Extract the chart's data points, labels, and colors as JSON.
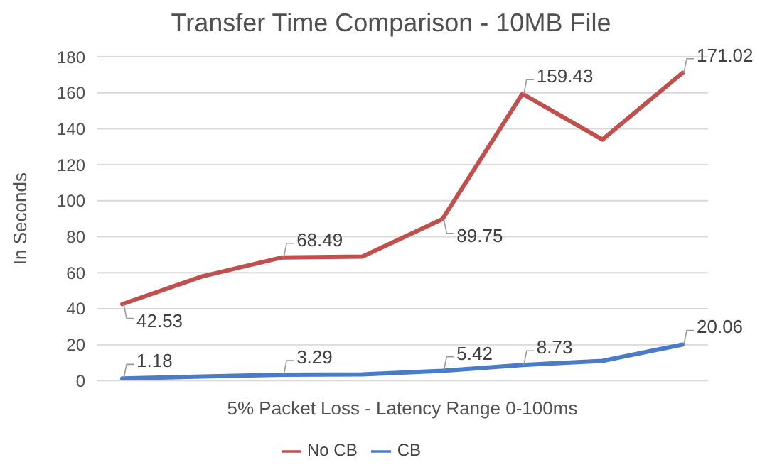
{
  "chart_data": {
    "type": "line",
    "title": "Transfer Time Comparison - 10MB File",
    "xlabel": "5% Packet Loss - Latency Range 0-100ms",
    "ylabel": "In Seconds",
    "categories": [
      null,
      null,
      null,
      null,
      null,
      null,
      null,
      null
    ],
    "series": [
      {
        "name": "No CB",
        "color": "#c0504d",
        "values": [
          42.53,
          58,
          68.49,
          69,
          89.75,
          159.43,
          134,
          171.02
        ],
        "value_labels": [
          "42.53",
          null,
          "68.49",
          null,
          "89.75",
          "159.43",
          null,
          "171.02"
        ]
      },
      {
        "name": "CB",
        "color": "#4a7bc8",
        "values": [
          1.18,
          2.3,
          3.29,
          3.5,
          5.42,
          8.73,
          11,
          20.06
        ],
        "value_labels": [
          "1.18",
          null,
          "3.29",
          null,
          "5.42",
          "8.73",
          null,
          "20.06"
        ]
      }
    ],
    "ylim": [
      0,
      180
    ],
    "yticks": [
      0,
      20,
      40,
      60,
      80,
      100,
      120,
      140,
      160,
      180
    ],
    "grid": "y",
    "legend": "bottom",
    "marker": "none",
    "line_style": "solid"
  }
}
